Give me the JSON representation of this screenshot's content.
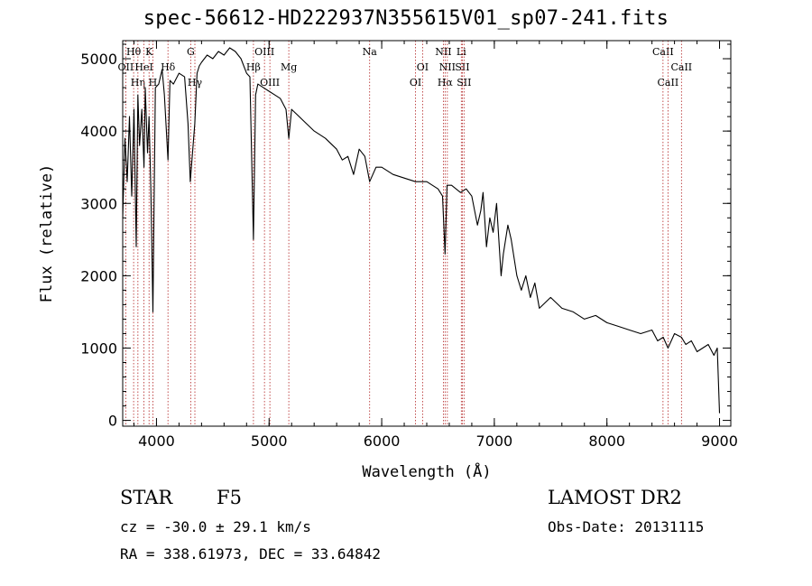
{
  "title": "spec-56612-HD222937N355615V01_sp07-241.fits",
  "info": {
    "class": "STAR",
    "subclass": "F5",
    "survey": "LAMOST DR2",
    "cz": "cz = -30.0 ± 29.1 km/s",
    "obsdate": "Obs-Date: 20131115",
    "coords": "RA = 338.61973, DEC =  33.64842"
  },
  "chart_data": {
    "type": "line",
    "xlabel": "Wavelength (Å)",
    "ylabel": "Flux (relative)",
    "xlim": [
      3700,
      9100
    ],
    "ylim": [
      -80,
      5250
    ],
    "xticks": [
      4000,
      5000,
      6000,
      7000,
      8000,
      9000
    ],
    "xtick_labels": [
      "4000",
      "5000",
      "6000",
      "7000",
      "8000",
      "9000"
    ],
    "yticks": [
      0,
      1000,
      2000,
      3000,
      4000,
      5000
    ],
    "ytick_labels": [
      "0",
      "1000",
      "2000",
      "3000",
      "4000",
      "5000"
    ],
    "line_color": "#000000",
    "marker_color": "#b22222",
    "series": [
      {
        "x": [
          3700,
          3720,
          3740,
          3760,
          3780,
          3800,
          3820,
          3835,
          3850,
          3870,
          3889,
          3900,
          3920,
          3934,
          3950,
          3968,
          3990,
          4020,
          4050,
          4070,
          4102,
          4120,
          4150,
          4200,
          4250,
          4280,
          4300,
          4325,
          4340,
          4360,
          4380,
          4400,
          4450,
          4500,
          4550,
          4600,
          4650,
          4700,
          4750,
          4800,
          4830,
          4861,
          4880,
          4900,
          4950,
          5000,
          5050,
          5100,
          5150,
          5175,
          5200,
          5300,
          5400,
          5500,
          5600,
          5650,
          5700,
          5750,
          5800,
          5850,
          5893,
          5950,
          6000,
          6100,
          6200,
          6300,
          6400,
          6500,
          6540,
          6563,
          6580,
          6620,
          6700,
          6750,
          6800,
          6850,
          6880,
          6900,
          6930,
          6960,
          6990,
          7020,
          7060,
          7080,
          7120,
          7150,
          7200,
          7240,
          7280,
          7320,
          7360,
          7400,
          7500,
          7600,
          7700,
          7800,
          7900,
          8000,
          8100,
          8200,
          8300,
          8400,
          8450,
          8500,
          8542,
          8600,
          8662,
          8700,
          8750,
          8800,
          8850,
          8900,
          8950,
          8980,
          9000
        ],
        "y": [
          2800,
          3900,
          3300,
          4200,
          3100,
          4300,
          2400,
          4500,
          3800,
          4300,
          3500,
          4600,
          3700,
          4200,
          3200,
          1500,
          4600,
          4650,
          4850,
          4500,
          3600,
          4700,
          4650,
          4800,
          4750,
          4100,
          3300,
          3800,
          4100,
          4800,
          4900,
          4950,
          5050,
          5000,
          5100,
          5050,
          5150,
          5100,
          5000,
          4800,
          4750,
          2500,
          4500,
          4650,
          4600,
          4550,
          4500,
          4450,
          4300,
          3900,
          4300,
          4150,
          4000,
          3900,
          3750,
          3600,
          3650,
          3400,
          3750,
          3650,
          3300,
          3500,
          3500,
          3400,
          3350,
          3300,
          3300,
          3200,
          3100,
          2300,
          3250,
          3250,
          3150,
          3200,
          3100,
          2700,
          2900,
          3150,
          2400,
          2800,
          2600,
          3000,
          2000,
          2300,
          2700,
          2500,
          2000,
          1800,
          2000,
          1700,
          1900,
          1550,
          1700,
          1550,
          1500,
          1400,
          1450,
          1350,
          1300,
          1250,
          1200,
          1250,
          1100,
          1150,
          1000,
          1200,
          1150,
          1050,
          1100,
          950,
          1000,
          1050,
          900,
          1000,
          100
        ]
      }
    ],
    "line_markers": [
      {
        "x": 3727,
        "label": "OII",
        "row": 1
      },
      {
        "x": 3797,
        "label": "Hθ",
        "row": 0
      },
      {
        "x": 3835,
        "label": "Hη",
        "row": 2
      },
      {
        "x": 3889,
        "label": "HeI",
        "row": 1
      },
      {
        "x": 3934,
        "label": "K",
        "row": 0
      },
      {
        "x": 3968,
        "label": "H",
        "row": 2
      },
      {
        "x": 4102,
        "label": "Hδ",
        "row": 1
      },
      {
        "x": 4304,
        "label": "G",
        "row": 0
      },
      {
        "x": 4341,
        "label": "Hγ",
        "row": 2
      },
      {
        "x": 4861,
        "label": "Hβ",
        "row": 1
      },
      {
        "x": 4959,
        "label": "OIII",
        "row": 0
      },
      {
        "x": 5007,
        "label": "OIII",
        "row": 2
      },
      {
        "x": 5175,
        "label": "Mg",
        "row": 1
      },
      {
        "x": 5893,
        "label": "Na",
        "row": 0
      },
      {
        "x": 6300,
        "label": "OI",
        "row": 2
      },
      {
        "x": 6363,
        "label": "OI",
        "row": 1
      },
      {
        "x": 6548,
        "label": "NII",
        "row": 0
      },
      {
        "x": 6563,
        "label": "Hα",
        "row": 2
      },
      {
        "x": 6583,
        "label": "NII",
        "row": 1
      },
      {
        "x": 6707,
        "label": "Li",
        "row": 0
      },
      {
        "x": 6716,
        "label": "SII",
        "row": 1
      },
      {
        "x": 6731,
        "label": "SII",
        "row": 2
      },
      {
        "x": 8498,
        "label": "CaII",
        "row": 0
      },
      {
        "x": 8542,
        "label": "CaII",
        "row": 2
      },
      {
        "x": 8662,
        "label": "CaII",
        "row": 1
      }
    ]
  }
}
